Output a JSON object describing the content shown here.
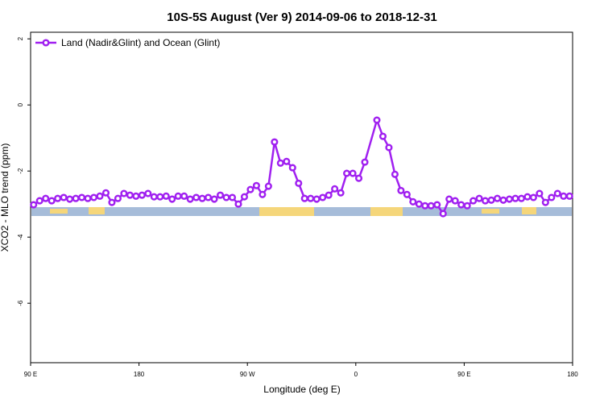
{
  "chart_data": {
    "type": "line",
    "title": "10S-5S August (Ver 9)   2014-09-06 to 2018-12-31",
    "x_label": "Longitude (deg E)",
    "y_label": "XCO2 - MLO trend (ppm)",
    "xlim": [
      90,
      540
    ],
    "ylim": [
      -7.8,
      2.2
    ],
    "xticks": [
      {
        "value": 90,
        "label": "90 E"
      },
      180,
      {
        "value": 270,
        "label": "90 W"
      },
      {
        "value": 360,
        "label": "0"
      },
      {
        "value": 450,
        "label": "90 E"
      },
      {
        "value": 540,
        "label": "180"
      }
    ],
    "yticks": [
      -6,
      -4,
      -2,
      0,
      2
    ],
    "legend": "top-left",
    "x": [
      92.5,
      97.5,
      102.5,
      107.5,
      112.5,
      117.5,
      122.5,
      127.5,
      132.5,
      137.5,
      142.5,
      147.5,
      152.5,
      157.5,
      162.5,
      167.5,
      172.5,
      177.5,
      182.5,
      187.5,
      192.5,
      197.5,
      202.5,
      207.5,
      212.5,
      217.5,
      222.5,
      227.5,
      232.5,
      237.5,
      242.5,
      247.5,
      252.5,
      257.5,
      262.5,
      267.5,
      272.5,
      277.5,
      282.5,
      287.5,
      292.5,
      297.5,
      302.5,
      307.5,
      312.5,
      317.5,
      322.5,
      327.5,
      332.5,
      337.5,
      342.5,
      347.5,
      352.5,
      357.5,
      362.5,
      367.5,
      377.5,
      382.5,
      387.5,
      392.5,
      397.5,
      402.5,
      407.5,
      412.5,
      417.5,
      422.5,
      427.5,
      432.5,
      437.5,
      442.5,
      447.5,
      452.5,
      457.5,
      462.5,
      467.5,
      472.5,
      477.5,
      482.5,
      487.5,
      492.5,
      497.5,
      502.5,
      507.5,
      512.5,
      517.5,
      522.5,
      527.5,
      532.5,
      537.5
    ],
    "series": [
      {
        "name": "Land (Nadir&Glint) and Ocean (Glint)",
        "color": "#a020f0",
        "values": [
          -3.02,
          -2.9,
          -2.83,
          -2.9,
          -2.83,
          -2.8,
          -2.85,
          -2.83,
          -2.8,
          -2.83,
          -2.8,
          -2.76,
          -2.66,
          -2.95,
          -2.83,
          -2.68,
          -2.73,
          -2.76,
          -2.73,
          -2.68,
          -2.78,
          -2.78,
          -2.76,
          -2.85,
          -2.76,
          -2.76,
          -2.85,
          -2.8,
          -2.83,
          -2.8,
          -2.85,
          -2.73,
          -2.8,
          -2.8,
          -3.0,
          -2.78,
          -2.56,
          -2.44,
          -2.71,
          -2.46,
          -1.12,
          -1.76,
          -1.71,
          -1.9,
          -2.37,
          -2.83,
          -2.83,
          -2.85,
          -2.8,
          -2.73,
          -2.54,
          -2.66,
          -2.07,
          -2.07,
          -2.22,
          -1.73,
          -0.46,
          -0.95,
          -1.29,
          -2.1,
          -2.59,
          -2.71,
          -2.93,
          -3.0,
          -3.05,
          -3.05,
          -3.02,
          -3.29,
          -2.85,
          -2.9,
          -3.02,
          -3.05,
          -2.9,
          -2.83,
          -2.9,
          -2.88,
          -2.83,
          -2.88,
          -2.85,
          -2.83,
          -2.83,
          -2.78,
          -2.8,
          -2.68,
          -2.95,
          -2.8,
          -2.68,
          -2.76,
          -2.76
        ]
      }
    ]
  }
}
